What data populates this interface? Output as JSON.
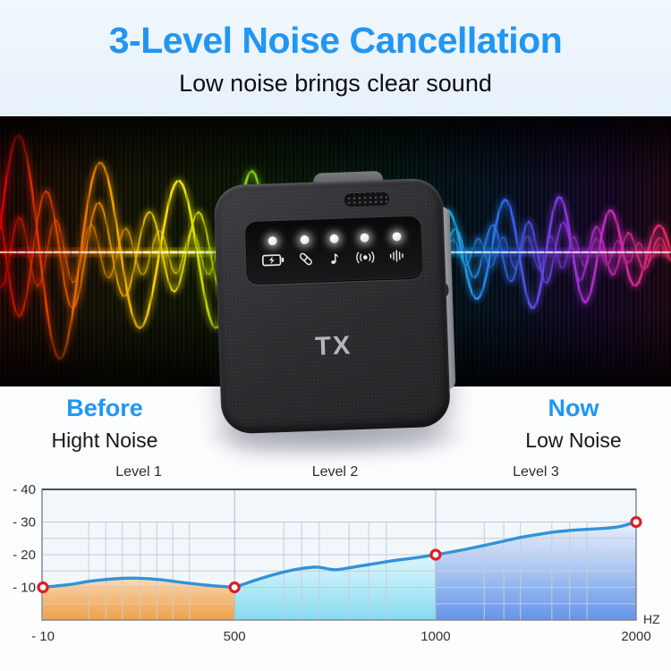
{
  "header": {
    "title": "3-Level Noise Cancellation",
    "subtitle": "Low noise brings clear sound"
  },
  "device": {
    "label": "TX",
    "led_icons": [
      "battery-icon",
      "link-icon",
      "music-note-icon",
      "noise-reduction-icon",
      "volume-bars-icon"
    ]
  },
  "comparison": {
    "before": {
      "title": "Before",
      "subtitle": "Hight Noise"
    },
    "now": {
      "title": "Now",
      "subtitle": "Low Noise"
    }
  },
  "chart_data": {
    "type": "area",
    "title": "",
    "xlabel": "",
    "ylabel": "",
    "x_unit": "HZ",
    "x_ticks": [
      {
        "label": "- 10",
        "pos": 0
      },
      {
        "label": "500",
        "pos": 0.323
      },
      {
        "label": "1000",
        "pos": 0.662
      },
      {
        "label": "2000",
        "pos": 1
      }
    ],
    "y_ticks": [
      {
        "label": "- 40",
        "value": -40
      },
      {
        "label": "- 30",
        "value": -30
      },
      {
        "label": "- 20",
        "value": -20
      },
      {
        "label": "- 10",
        "value": -10
      }
    ],
    "ylim": [
      -40,
      0
    ],
    "grid": true,
    "legend_position": "none",
    "sections": [
      {
        "label": "Level 1",
        "from": 0,
        "to": 0.323,
        "fill_top": "#fdf1dc",
        "fill_mid": "#f5c084",
        "fill_bottom": "#efa14b"
      },
      {
        "label": "Level 2",
        "from": 0.323,
        "to": 0.662,
        "fill_top": "#f2fbfe",
        "fill_mid": "#c0edf9",
        "fill_bottom": "#86daf3"
      },
      {
        "label": "Level 3",
        "from": 0.662,
        "to": 1,
        "fill_top": "#e9f0fb",
        "fill_mid": "#a9c4f2",
        "fill_bottom": "#6495e9"
      }
    ],
    "curve": [
      [
        0,
        -10
      ],
      [
        0.05,
        -11
      ],
      [
        0.08,
        -11.9
      ],
      [
        0.12,
        -12.6
      ],
      [
        0.16,
        -12.8
      ],
      [
        0.2,
        -12.3
      ],
      [
        0.24,
        -11.4
      ],
      [
        0.28,
        -10.6
      ],
      [
        0.323,
        -10
      ],
      [
        0.36,
        -12.3
      ],
      [
        0.4,
        -14.4
      ],
      [
        0.43,
        -15.6
      ],
      [
        0.462,
        -16.2
      ],
      [
        0.492,
        -15.4
      ],
      [
        0.523,
        -16.2
      ],
      [
        0.56,
        -17.3
      ],
      [
        0.6,
        -18.4
      ],
      [
        0.63,
        -19.1
      ],
      [
        0.662,
        -20
      ],
      [
        0.7,
        -21.2
      ],
      [
        0.73,
        -22.3
      ],
      [
        0.77,
        -23.9
      ],
      [
        0.8,
        -25.1
      ],
      [
        0.832,
        -26.1
      ],
      [
        0.86,
        -26.9
      ],
      [
        0.9,
        -27.6
      ],
      [
        0.93,
        -27.9
      ],
      [
        0.955,
        -28.2
      ],
      [
        0.975,
        -28.7
      ],
      [
        1,
        -30
      ]
    ],
    "markers": [
      [
        0,
        -10
      ],
      [
        0.323,
        -10
      ],
      [
        0.662,
        -20
      ],
      [
        1,
        -30
      ]
    ],
    "line_color": "#3193d8",
    "marker_color": "#dc1e24"
  },
  "colors": {
    "accent_blue": "#2196f3",
    "wave_gradient": [
      "#d40000",
      "#e84c00",
      "#f0a000",
      "#ffe400",
      "#bfe800",
      "#52dc28",
      "#20d47a",
      "#1ad8c8",
      "#22b4ec",
      "#2a6cf0",
      "#8438e8",
      "#d22cb4",
      "#e82858"
    ]
  }
}
